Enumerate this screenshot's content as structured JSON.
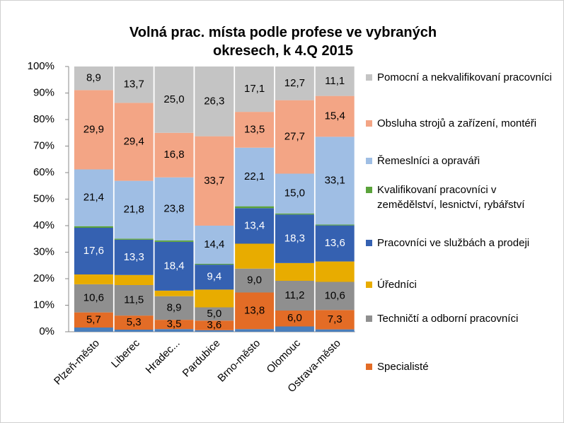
{
  "chart_data": {
    "type": "stacked_bar_100",
    "title": "Volná prac. místa podle profese ve vybraných okresech, k 4.Q 2015",
    "categories": [
      "Plzeň-město",
      "Liberec",
      "Hradec...",
      "Pardubice",
      "Brno-město",
      "Olomouc",
      "Ostrava-město"
    ],
    "ylim": [
      0,
      100
    ],
    "yticks": [
      {
        "value": 0,
        "label": "0%"
      },
      {
        "value": 10,
        "label": "10%"
      },
      {
        "value": 20,
        "label": "20%"
      },
      {
        "value": 30,
        "label": "30%"
      },
      {
        "value": 40,
        "label": "40%"
      },
      {
        "value": 50,
        "label": "50%"
      },
      {
        "value": 60,
        "label": "60%"
      },
      {
        "value": 70,
        "label": "70%"
      },
      {
        "value": 80,
        "label": "80%"
      },
      {
        "value": 90,
        "label": "90%"
      },
      {
        "value": 100,
        "label": "100%"
      }
    ],
    "grid": false,
    "legend": "right",
    "series": [
      {
        "name": null,
        "color": "#4a7ebb",
        "values": [
          1.6,
          0.8,
          1.0,
          0.6,
          1.0,
          2.0,
          0.9
        ],
        "value_labels": [
          null,
          null,
          null,
          null,
          null,
          null,
          null
        ]
      },
      {
        "name": "Specialisté",
        "color": "#e36c26",
        "values": [
          5.7,
          5.3,
          3.5,
          3.6,
          13.8,
          6.0,
          7.3
        ],
        "value_labels": [
          "5,7",
          "5,3",
          "3,5",
          "3,6",
          "13,8",
          "6,0",
          "7,3"
        ]
      },
      {
        "name": "Techničtí a odborní pracovníci",
        "color": "#8f8f8f",
        "values": [
          10.6,
          11.5,
          8.9,
          5.0,
          9.0,
          11.2,
          10.6
        ],
        "value_labels": [
          "10,6",
          "11,5",
          "8,9",
          "5,0",
          "9,0",
          "11,2",
          "10,6"
        ]
      },
      {
        "name": "Úředníci",
        "color": "#e8ac00",
        "values": [
          3.7,
          3.8,
          2.1,
          6.7,
          9.4,
          6.7,
          7.7
        ],
        "value_labels": [
          null,
          null,
          null,
          null,
          null,
          null,
          null
        ]
      },
      {
        "name": "Pracovníci ve službách a prodeji",
        "color": "#3561b1",
        "values": [
          17.6,
          13.3,
          18.4,
          9.4,
          13.4,
          18.3,
          13.6
        ],
        "value_labels": [
          "17,6",
          "13,3",
          "18,4",
          "9,4",
          "13,4",
          "18,3",
          "13,6"
        ]
      },
      {
        "name": "Kvalifikovaní pracovníci v zemědělství, lesnictví, rybářství",
        "color": "#5ba33b",
        "values": [
          0.6,
          0.4,
          0.5,
          0.3,
          0.7,
          0.4,
          0.3
        ],
        "value_labels": [
          null,
          null,
          null,
          null,
          null,
          null,
          null
        ]
      },
      {
        "name": "Řemeslníci a opraváři",
        "color": "#9fbee4",
        "values": [
          21.4,
          21.8,
          23.8,
          14.4,
          22.1,
          15.0,
          33.1
        ],
        "value_labels": [
          "21,4",
          "21,8",
          "23,8",
          "14,4",
          "22,1",
          "15,0",
          "33,1"
        ]
      },
      {
        "name": "Obsluha strojů a zařízení, montéři",
        "color": "#f3a585",
        "values": [
          29.9,
          29.4,
          16.8,
          33.7,
          13.5,
          27.7,
          15.4
        ],
        "value_labels": [
          "29,9",
          "29,4",
          "16,8",
          "33,7",
          "13,5",
          "27,7",
          "15,4"
        ]
      },
      {
        "name": "Pomocní a nekvalifikovaní pracovníci",
        "color": "#c4c4c4",
        "values": [
          8.9,
          13.7,
          25.0,
          26.3,
          17.1,
          12.7,
          11.1
        ],
        "value_labels": [
          "8,9",
          "13,7",
          "25,0",
          "26,3",
          "17,1",
          "12,7",
          "11,1"
        ]
      }
    ]
  }
}
